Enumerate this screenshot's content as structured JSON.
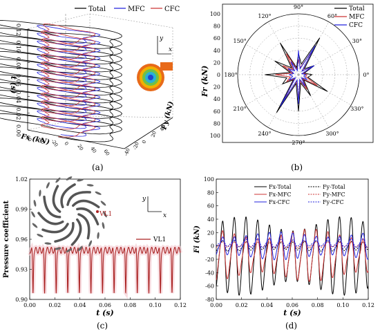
{
  "figure": {
    "panel_labels": [
      "(a)",
      "(b)",
      "(c)",
      "(d)"
    ]
  },
  "chart_data": [
    {
      "panel": "(a)",
      "type": "line",
      "projection": "3d",
      "legend": {
        "position": "top",
        "entries": [
          "Total",
          "MFC",
          "CFC"
        ]
      },
      "series": [
        {
          "name": "Total",
          "color": "#000000"
        },
        {
          "name": "MFC",
          "color": "#2222dd"
        },
        {
          "name": "CFC",
          "color": "#cc3333"
        }
      ],
      "t_axis": {
        "label": "t (s)",
        "ticks": [
          "0.00",
          "0.02",
          "0.04",
          "0.06",
          "0.08",
          "0.10",
          "0.12"
        ],
        "range": [
          0,
          0.12
        ]
      },
      "fx_axis": {
        "label": "Fx (kN)",
        "ticks": [
          "-60",
          "-40",
          "-20",
          "0",
          "20",
          "40",
          "60"
        ]
      },
      "fy_axis": {
        "label": "Fy (kN)",
        "ticks": [
          "-40",
          "-20",
          "0",
          "20",
          "40"
        ]
      },
      "inset": {
        "axis_labels": [
          "y",
          "x"
        ],
        "icon": "impeller-contour-icon"
      }
    },
    {
      "panel": "(b)",
      "type": "polar",
      "radial_label": "Fr (kN)",
      "radial_ticks": [
        "0",
        "20",
        "40",
        "60",
        "80",
        "100"
      ],
      "radial_range": [
        0,
        100
      ],
      "angle_ticks": [
        "0°",
        "30°",
        "60°",
        "90°",
        "120°",
        "150°",
        "180°",
        "210°",
        "240°",
        "270°",
        "300°",
        "330°"
      ],
      "legend": {
        "position": "top-right",
        "entries": [
          "Total",
          "MFC",
          "CFC"
        ]
      },
      "series": [
        {
          "name": "Total",
          "color": "#000000",
          "r": [
            22,
            10,
            30,
            14,
            70,
            18,
            35,
            12,
            60,
            16,
            45,
            14,
            55,
            20,
            30,
            12,
            72,
            15,
            60,
            14,
            40,
            12,
            55,
            16
          ],
          "theta": [
            0,
            15,
            30,
            45,
            60,
            75,
            90,
            105,
            120,
            135,
            150,
            165,
            180,
            195,
            210,
            225,
            240,
            255,
            270,
            285,
            300,
            315,
            330,
            345
          ]
        },
        {
          "name": "MFC",
          "color": "#cc3333",
          "r": [
            14,
            8,
            22,
            10,
            45,
            12,
            25,
            9,
            40,
            12,
            30,
            10,
            38,
            14,
            22,
            9,
            48,
            11,
            40,
            10,
            28,
            9,
            36,
            12
          ],
          "theta": [
            0,
            15,
            30,
            45,
            60,
            75,
            90,
            105,
            120,
            135,
            150,
            165,
            180,
            195,
            210,
            225,
            240,
            255,
            270,
            285,
            300,
            315,
            330,
            345
          ]
        },
        {
          "name": "CFC",
          "color": "#2222dd",
          "r": [
            12,
            6,
            30,
            8,
            55,
            10,
            40,
            7,
            25,
            9,
            20,
            8,
            15,
            10,
            18,
            7,
            60,
            9,
            48,
            8,
            22,
            7,
            16,
            9
          ],
          "theta": [
            0,
            15,
            30,
            45,
            60,
            75,
            90,
            105,
            120,
            135,
            150,
            165,
            180,
            195,
            210,
            225,
            240,
            255,
            270,
            285,
            300,
            315,
            330,
            345
          ]
        }
      ]
    },
    {
      "panel": "(c)",
      "type": "line",
      "xlabel": "t (s)",
      "ylabel": "Pressure coefficient",
      "xlim": [
        0,
        0.12
      ],
      "ylim": [
        0.9,
        1.02
      ],
      "xticks": [
        "0.00",
        "0.02",
        "0.04",
        "0.06",
        "0.08",
        "0.10",
        "0.12"
      ],
      "yticks": [
        "0.90",
        "0.93",
        "0.96",
        "0.99",
        "1.02"
      ],
      "legend": {
        "position": "center-right",
        "entries": [
          "VL1"
        ]
      },
      "inset": {
        "axis_labels": [
          "y",
          "x"
        ],
        "point_label": "VL1",
        "icon": "impeller-blades-icon"
      },
      "series": [
        {
          "name": "VL1",
          "color": "#aa2222",
          "period": 0.00923,
          "baseline": 0.949,
          "trough": 0.906
        }
      ]
    },
    {
      "panel": "(d)",
      "type": "line",
      "xlabel": "t (s)",
      "ylabel": "Fi (kN)",
      "xlim": [
        0,
        0.12
      ],
      "ylim": [
        -80,
        100
      ],
      "xticks": [
        "0.00",
        "0.02",
        "0.04",
        "0.06",
        "0.08",
        "0.10",
        "0.12"
      ],
      "yticks": [
        "-80",
        "-60",
        "-40",
        "-20",
        "0",
        "20",
        "40",
        "60",
        "80",
        "100"
      ],
      "legend": {
        "position": "top",
        "entries": [
          "Fx-Total",
          "Fy-Total",
          "Fx-MFC",
          "Fy-MFC",
          "Fx-CFC",
          "Fy-CFC"
        ]
      },
      "series": [
        {
          "name": "Fx-Total",
          "color": "#000000",
          "dash": false,
          "mean": -15,
          "amp": 45,
          "period": 0.00923
        },
        {
          "name": "Fy-Total",
          "color": "#000000",
          "dash": true,
          "mean": 0,
          "amp": 6,
          "period": 0.00923
        },
        {
          "name": "Fx-MFC",
          "color": "#cc3333",
          "dash": false,
          "mean": -14,
          "amp": 30,
          "period": 0.00923
        },
        {
          "name": "Fy-MFC",
          "color": "#cc3333",
          "dash": true,
          "mean": 2,
          "amp": 4,
          "period": 0.00923
        },
        {
          "name": "Fx-CFC",
          "color": "#2222dd",
          "dash": false,
          "mean": 0,
          "amp": 16,
          "period": 0.00923
        },
        {
          "name": "Fy-CFC",
          "color": "#2222dd",
          "dash": true,
          "mean": 4,
          "amp": 5,
          "period": 0.00923
        }
      ]
    }
  ]
}
